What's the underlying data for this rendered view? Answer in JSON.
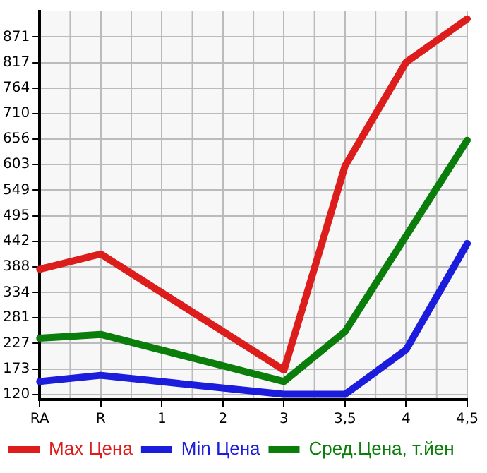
{
  "chart_data": {
    "type": "line",
    "categories": [
      "RA",
      "R",
      "1",
      "2",
      "3",
      "3,5",
      "4",
      "4,5"
    ],
    "series": [
      {
        "name": "Max Цена",
        "color": "#dd1c1c",
        "values": [
          383,
          415,
          null,
          null,
          171,
          600,
          818,
          909
        ]
      },
      {
        "name": "Min Цена",
        "color": "#1c1cdd",
        "values": [
          147,
          160,
          null,
          null,
          120,
          120,
          214,
          437
        ]
      },
      {
        "name": "Сред.Цена, т.йен",
        "color": "#0a7d0a",
        "values": [
          238,
          246,
          null,
          null,
          147,
          252,
          453,
          654
        ]
      }
    ],
    "ylim": [
      109,
      925
    ],
    "yticks": [
      120,
      173,
      227,
      281,
      334,
      388,
      442,
      495,
      549,
      603,
      656,
      710,
      764,
      817,
      871
    ],
    "grid": true,
    "legend": "bottom",
    "marker": "none",
    "line_style": "solid"
  }
}
